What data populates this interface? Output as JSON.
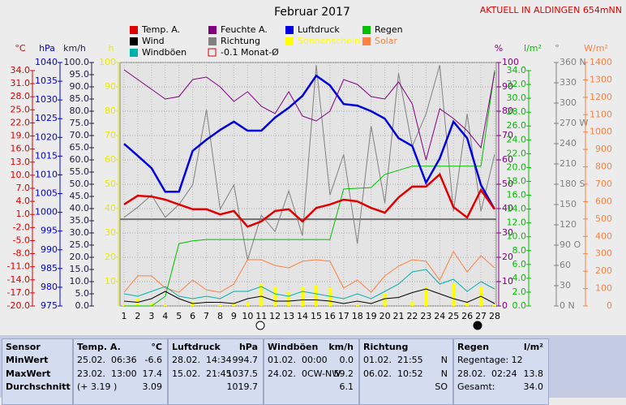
{
  "chart_data": {
    "type": "line",
    "title": "Februar 2017",
    "subtitle": "AKTUELL IN ALDINGEN 654mNN",
    "grid": true,
    "x": [
      1,
      2,
      3,
      4,
      5,
      6,
      7,
      8,
      9,
      10,
      11,
      12,
      13,
      14,
      15,
      16,
      17,
      18,
      19,
      20,
      21,
      22,
      23,
      24,
      25,
      26,
      27,
      28
    ],
    "xlim": [
      1,
      28
    ],
    "axes": [
      {
        "label": "°C",
        "color": "#e00000",
        "ylim": [
          -20,
          34
        ],
        "yticks": [
          {
            "value": 34,
            "label": "34.0"
          },
          {
            "value": 31,
            "label": "31.0"
          },
          {
            "value": 28,
            "label": "28.0"
          },
          {
            "value": 25,
            "label": "25.0"
          },
          {
            "value": 22,
            "label": "22.0"
          },
          {
            "value": 19,
            "label": "19.0"
          },
          {
            "value": 16,
            "label": "16.0"
          },
          {
            "value": 13,
            "label": "13.0"
          },
          {
            "value": 10,
            "label": "10.0"
          },
          {
            "value": 7,
            "label": "7.0"
          },
          {
            "value": 4,
            "label": "4.0"
          },
          {
            "value": 1,
            "label": "1.0"
          },
          {
            "value": -2,
            "label": "-2.0"
          },
          {
            "value": -5,
            "label": "-5.0"
          },
          {
            "value": -8,
            "label": "-8.0"
          },
          {
            "value": -11,
            "label": "-11.0"
          },
          {
            "value": -14,
            "label": "-14.0"
          },
          {
            "value": -17,
            "label": "-17.0"
          },
          {
            "value": -20,
            "label": "-20.0"
          }
        ]
      },
      {
        "label": "hPa",
        "color": "#0000e0",
        "ylim": [
          975,
          1040
        ],
        "yticks": [
          1040,
          1035,
          1030,
          1025,
          1020,
          1015,
          1010,
          1005,
          1000,
          995,
          990,
          985,
          980,
          975
        ]
      },
      {
        "label": "km/h",
        "color": "#202040",
        "ylim": [
          0,
          100
        ],
        "yticks": [
          {
            "value": 100,
            "label": "100.0"
          },
          {
            "value": 95,
            "label": "95.0"
          },
          {
            "value": 90,
            "label": "90.0"
          },
          {
            "value": 85,
            "label": "85.0"
          },
          {
            "value": 80,
            "label": "80.0"
          },
          {
            "value": 75,
            "label": "75.0"
          },
          {
            "value": 70,
            "label": "70.0"
          },
          {
            "value": 65,
            "label": "65.0"
          },
          {
            "value": 60,
            "label": "60.0"
          },
          {
            "value": 55,
            "label": "55.0"
          },
          {
            "value": 50,
            "label": "50.0"
          },
          {
            "value": 45,
            "label": "45.0"
          },
          {
            "value": 40,
            "label": "40.0"
          },
          {
            "value": 35,
            "label": "35.0"
          },
          {
            "value": 30,
            "label": "30.0"
          },
          {
            "value": 25,
            "label": "25.0"
          },
          {
            "value": 20,
            "label": "20.0"
          },
          {
            "value": 15,
            "label": "15.0"
          },
          {
            "value": 10,
            "label": "10.0"
          },
          {
            "value": 5,
            "label": "5.0"
          },
          {
            "value": 0,
            "label": "0.0"
          }
        ]
      },
      {
        "label": "h",
        "color": "#e8e800",
        "ylim": [
          0,
          100
        ],
        "yticks": [
          100,
          90,
          80,
          70,
          60,
          50,
          40,
          30,
          20,
          10
        ]
      },
      {
        "label": "%",
        "color": "#800080",
        "ylim": [
          0,
          100
        ],
        "yticks": [
          100,
          90,
          80,
          70,
          60,
          50,
          40,
          30,
          20,
          10,
          0
        ]
      },
      {
        "label": "l/m²",
        "color": "#00c000",
        "ylim": [
          0,
          34
        ],
        "yticks": [
          {
            "value": 34,
            "label": "34.0"
          },
          {
            "value": 32,
            "label": "32.0"
          },
          {
            "value": 30,
            "label": "30.0"
          },
          {
            "value": 28,
            "label": "28.0"
          },
          {
            "value": 26,
            "label": "26.0"
          },
          {
            "value": 24,
            "label": "24.0"
          },
          {
            "value": 22,
            "label": "22.0"
          },
          {
            "value": 20,
            "label": "20.0"
          },
          {
            "value": 18,
            "label": "18.0"
          },
          {
            "value": 16,
            "label": "16.0"
          },
          {
            "value": 14,
            "label": "14.0"
          },
          {
            "value": 12,
            "label": "12.0"
          },
          {
            "value": 10,
            "label": "10.0"
          },
          {
            "value": 8,
            "label": "8.0"
          },
          {
            "value": 6,
            "label": "6.0"
          },
          {
            "value": 4,
            "label": "4.0"
          },
          {
            "value": 2,
            "label": "2.0"
          },
          {
            "value": 0,
            "label": "0.0"
          }
        ]
      },
      {
        "label": "°",
        "color": "#808080",
        "ylim": [
          0,
          360
        ],
        "yticks": [
          {
            "value": 360,
            "label": "360 N"
          },
          330,
          300,
          {
            "value": 270,
            "label": "270 W"
          },
          240,
          210,
          {
            "value": 180,
            "label": "180 S"
          },
          150,
          120,
          {
            "value": 90,
            "label": "90 O"
          },
          60,
          30,
          {
            "value": 0,
            "label": "0 N"
          }
        ]
      },
      {
        "label": "W/m²",
        "color": "#ff8040",
        "ylim": [
          0,
          1400
        ],
        "yticks": [
          1400,
          1300,
          1200,
          1100,
          1000,
          900,
          800,
          700,
          600,
          500,
          400,
          300,
          200,
          100,
          0
        ]
      }
    ],
    "series": [
      {
        "name": "Temp. A.",
        "color": "#e00000",
        "axis": 0,
        "style": "line",
        "width": 2.5,
        "values": [
          3.3,
          5.3,
          5.1,
          4.4,
          3.3,
          2.2,
          2.2,
          1.0,
          1.8,
          -1.8,
          -0.6,
          1.8,
          2.2,
          -0.6,
          2.5,
          3.3,
          4.4,
          4.0,
          2.5,
          1.4,
          4.9,
          7.4,
          7.4,
          10.2,
          2.7,
          0.3,
          6.6,
          2.2
        ]
      },
      {
        "name": "Feuchte A.",
        "color": "#800080",
        "axis": 4,
        "style": "line",
        "width": 1,
        "values": [
          97,
          93,
          89,
          85,
          86,
          93,
          94,
          90,
          84,
          88,
          82,
          79,
          88,
          78,
          76,
          80,
          93,
          91,
          86,
          85,
          92,
          83,
          60,
          81,
          77,
          72,
          65,
          96
        ]
      },
      {
        "name": "Luftdruck",
        "color": "#0000e0",
        "axis": 1,
        "style": "line",
        "width": 2.5,
        "values": [
          1018.3,
          1015.1,
          1011.8,
          1005.5,
          1005.5,
          1016.4,
          1019.4,
          1022.0,
          1024.2,
          1021.8,
          1021.8,
          1025.3,
          1027.9,
          1031.1,
          1036.5,
          1033.9,
          1028.9,
          1028.5,
          1027.0,
          1025.0,
          1019.8,
          1017.7,
          1007.9,
          1014.4,
          1024.2,
          1019.8,
          1007.3,
          1000.8
        ]
      },
      {
        "name": "Regen",
        "color": "#00c000",
        "axis": 5,
        "style": "line",
        "width": 1,
        "values": [
          0,
          0,
          0,
          1.4,
          9.0,
          9.4,
          9.6,
          9.6,
          9.6,
          9.6,
          9.6,
          9.6,
          9.6,
          9.6,
          9.6,
          9.6,
          16.9,
          17.0,
          17.1,
          19.0,
          19.6,
          20.2,
          20.2,
          20.2,
          20.2,
          20.2,
          20.2,
          34.0
        ]
      },
      {
        "name": "Wind",
        "color": "#000000",
        "axis": 2,
        "style": "line",
        "width": 1,
        "values": [
          2,
          1.5,
          3,
          6,
          3,
          1,
          1.5,
          1.5,
          1,
          3,
          4,
          2,
          2,
          2.5,
          2.5,
          2,
          1,
          2,
          1,
          3,
          3.5,
          5.5,
          7,
          5,
          3,
          1.5,
          4,
          1
        ]
      },
      {
        "name": "Richtung",
        "color": "#808080",
        "axis": 6,
        "style": "line",
        "width": 1,
        "values": [
          131,
          146,
          164,
          131,
          150,
          179,
          290,
          143,
          179,
          68,
          134,
          110,
          170,
          104,
          356,
          164,
          224,
          92,
          266,
          152,
          344,
          236,
          284,
          356,
          140,
          284,
          140,
          224
        ]
      },
      {
        "name": "Sonnenschein",
        "color": "#ffff00",
        "axis": 3,
        "style": "bar",
        "legend_colored_text": true,
        "values": [
          0.3,
          3,
          1.2,
          0.3,
          0,
          2,
          0,
          0.5,
          1,
          1.5,
          9,
          8,
          6,
          8,
          8.5,
          7.5,
          0,
          0.5,
          0,
          5,
          0,
          2,
          8,
          0,
          9,
          1.5,
          8,
          0.5
        ]
      },
      {
        "name": "Solar",
        "color": "#ff8040",
        "axis": 7,
        "style": "line",
        "width": 1,
        "legend_colored_text": true,
        "values": [
          79,
          173,
          173,
          103,
          79,
          149,
          93,
          79,
          126,
          266,
          266,
          233,
          219,
          257,
          266,
          257,
          103,
          149,
          79,
          173,
          229,
          266,
          257,
          149,
          313,
          196,
          289,
          219
        ]
      },
      {
        "name": "Windböen",
        "color": "#00b0b0",
        "axis": 2,
        "style": "line",
        "width": 1,
        "values": [
          5,
          4,
          6,
          8,
          4,
          3,
          4,
          3,
          6,
          6,
          8,
          5,
          4,
          6,
          5,
          4,
          3,
          5,
          3,
          6,
          9,
          14,
          15,
          9,
          11,
          6,
          10,
          7
        ]
      }
    ],
    "monthly_avg": {
      "label": "-0.1 Monat-Ø",
      "value": -0.1,
      "axis": 0,
      "color": "#707070",
      "legend_color": "#e00000"
    }
  },
  "table": {
    "header": [
      {
        "left": "Sensor"
      },
      {
        "left": "Temp. A.",
        "right": "°C"
      },
      {
        "left": "Luftdruck",
        "right": "hPa"
      },
      {
        "left": "Windböen",
        "right": "km/h"
      },
      {
        "left": "Richtung"
      },
      {
        "left": "Regen",
        "right": "l/m²"
      }
    ],
    "rows": [
      [
        {
          "left": "MinWert"
        },
        {
          "left": "25.02.  06:36",
          "right": "-6.6"
        },
        {
          "left": "28.02.  14:34",
          "right": "994.7"
        },
        {
          "left": "01.02.  00:00",
          "right": "0.0"
        },
        {
          "left": "01.02.  21:55",
          "right": "N"
        },
        {
          "left": "Regentage: 12"
        }
      ],
      [
        {
          "left": "MaxWert"
        },
        {
          "left": "23.02.  13:00",
          "right": "17.4"
        },
        {
          "left": "15.02.  21:45",
          "right": "1037.5"
        },
        {
          "left": "24.02.  0CW-NW",
          "right": "59.2"
        },
        {
          "left": "06.02.  10:52",
          "right": "N"
        },
        {
          "left": "28.02.  02:24",
          "right": "13.8"
        }
      ],
      [
        {
          "left": "Durchschnitt"
        },
        {
          "left": "(+ 3.19 )",
          "right": "3.09"
        },
        {
          "right": "1019.7"
        },
        {
          "right": "6.1"
        },
        {
          "right": "SO"
        },
        {
          "left": "Gesamt:",
          "right": "34.0"
        }
      ]
    ]
  }
}
